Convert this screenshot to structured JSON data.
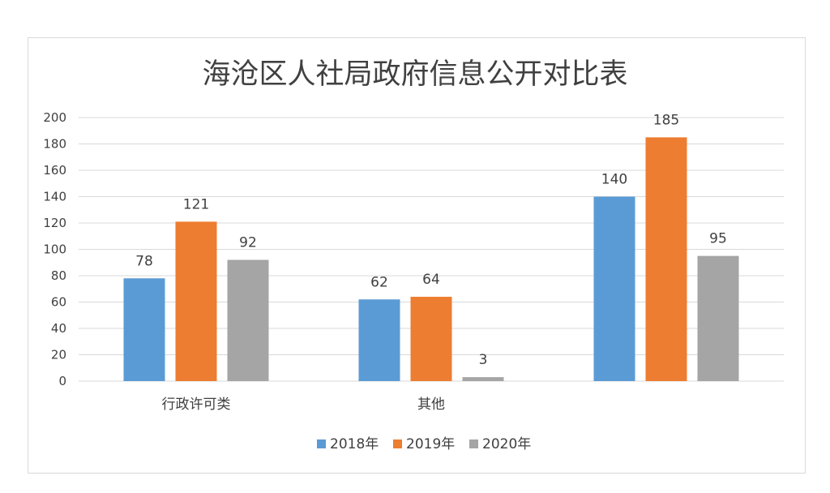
{
  "chart_data": {
    "type": "bar",
    "title": "海沧区人社局政府信息公开对比表",
    "categories": [
      "行政许可类",
      "其他",
      ""
    ],
    "series": [
      {
        "name": "2018年",
        "color": "#5b9bd5",
        "values": [
          78,
          62,
          140
        ]
      },
      {
        "name": "2019年",
        "color": "#ed7d31",
        "values": [
          121,
          64,
          185
        ]
      },
      {
        "name": "2020年",
        "color": "#a5a5a5",
        "values": [
          92,
          3,
          95
        ]
      }
    ],
    "ylim": [
      0,
      200
    ],
    "yticks": [
      0,
      20,
      40,
      60,
      80,
      100,
      120,
      140,
      160,
      180,
      200
    ],
    "grid": true,
    "legend": "bottom",
    "gridline_color": "#d9d9d9"
  }
}
